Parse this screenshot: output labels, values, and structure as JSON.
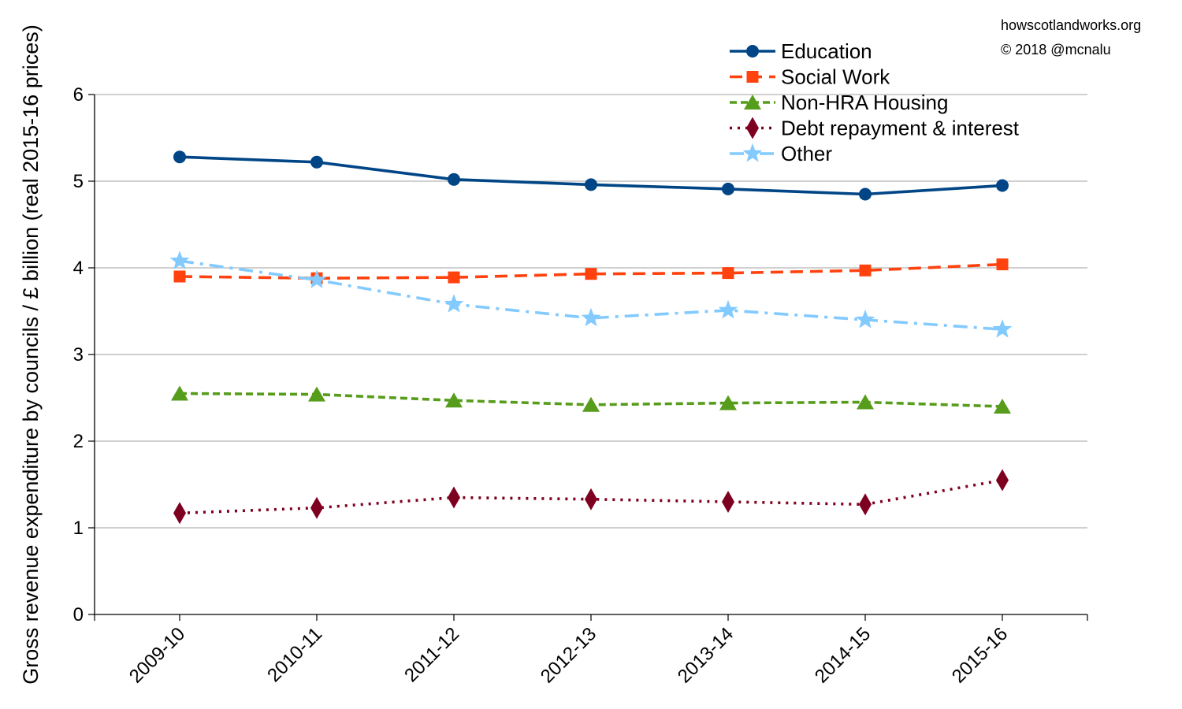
{
  "credits": {
    "site": "howscotlandworks.org",
    "copyright": "© 2018  @mcnalu"
  },
  "chart_data": {
    "type": "line",
    "title": "",
    "xlabel": "",
    "ylabel": "Gross revenue expenditure by councils / £ billion (real 2015-16 prices)",
    "ylim": [
      0,
      6
    ],
    "yticks": [
      "0",
      "1",
      "2",
      "3",
      "4",
      "5",
      "6"
    ],
    "categories": [
      "2009-10",
      "2010-11",
      "2011-12",
      "2012-13",
      "2013-14",
      "2014-15",
      "2015-16"
    ],
    "grid": "horizontal",
    "legend_position": "top-right",
    "series": [
      {
        "name": "Education",
        "values": [
          5.28,
          5.22,
          5.02,
          4.96,
          4.91,
          4.85,
          4.95
        ],
        "color": "#004586",
        "line": "solid",
        "marker": "circle"
      },
      {
        "name": "Social Work",
        "values": [
          3.9,
          3.88,
          3.89,
          3.93,
          3.94,
          3.97,
          4.04
        ],
        "color": "#ff420e",
        "line": "dashed",
        "marker": "square"
      },
      {
        "name": "Non-HRA Housing",
        "values": [
          2.55,
          2.54,
          2.47,
          2.42,
          2.44,
          2.45,
          2.4
        ],
        "color": "#579d1c",
        "line": "short-dashed",
        "marker": "triangle"
      },
      {
        "name": "Debt repayment & interest",
        "values": [
          1.17,
          1.23,
          1.35,
          1.33,
          1.3,
          1.27,
          1.55
        ],
        "color": "#7e0021",
        "line": "dotted",
        "marker": "diamond"
      },
      {
        "name": "Other",
        "values": [
          4.08,
          3.86,
          3.58,
          3.42,
          3.51,
          3.4,
          3.29
        ],
        "color": "#83caff",
        "line": "dash-dot",
        "marker": "star"
      }
    ]
  }
}
